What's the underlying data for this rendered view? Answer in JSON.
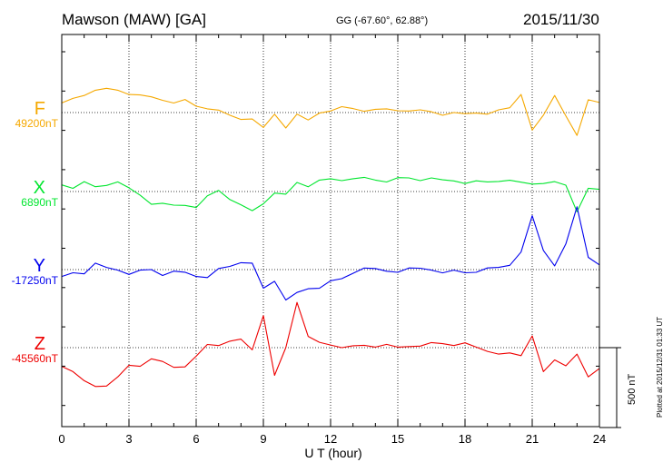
{
  "header": {
    "station": "Mawson (MAW)  [GA]",
    "coords": "GG (-67.60°,  62.88°)",
    "date": "2015/11/30"
  },
  "footer": {
    "plotted": "Plotted at 2015/12/31 01:33 UT",
    "scale_bar": "500 nT"
  },
  "chart_data": {
    "type": "line",
    "xlabel": "U T (hour)",
    "xlim": [
      0,
      24
    ],
    "xticks": [
      "0",
      "3",
      "6",
      "9",
      "12",
      "15",
      "18",
      "21",
      "24"
    ],
    "grid": true,
    "scale_bar_nT": 500,
    "series": [
      {
        "name": "F",
        "baseline": "49200nT",
        "color": "#f5a800",
        "x": [
          0,
          0.5,
          1,
          1.5,
          2,
          2.5,
          3,
          3.5,
          4,
          4.5,
          5,
          5.5,
          6,
          6.5,
          7,
          7.5,
          8,
          8.5,
          9,
          9.5,
          10,
          10.5,
          11,
          11.5,
          12,
          12.5,
          13,
          13.5,
          14,
          14.5,
          15,
          15.5,
          16,
          16.5,
          17,
          17.5,
          18,
          18.5,
          19,
          19.5,
          20,
          20.5,
          21,
          21.5,
          22,
          22.5,
          23,
          23.5,
          24
        ],
        "y": [
          50,
          85,
          110,
          150,
          145,
          140,
          120,
          100,
          95,
          80,
          70,
          75,
          40,
          30,
          5,
          -20,
          -40,
          -30,
          -100,
          -10,
          -90,
          -20,
          -50,
          0,
          20,
          30,
          25,
          15,
          10,
          20,
          15,
          20,
          10,
          5,
          -10,
          -10,
          -10,
          0,
          0,
          10,
          30,
          120,
          -120,
          -20,
          110,
          -10,
          -150,
          80,
          70
        ]
      },
      {
        "name": "X",
        "baseline": "6890nT",
        "color": "#00e62e",
        "x": [
          0,
          0.5,
          1,
          1.5,
          2,
          2.5,
          3,
          3.5,
          4,
          4.5,
          5,
          5.5,
          6,
          6.5,
          7,
          7.5,
          8,
          8.5,
          9,
          9.5,
          10,
          10.5,
          11,
          11.5,
          12,
          12.5,
          13,
          13.5,
          14,
          14.5,
          15,
          15.5,
          16,
          16.5,
          17,
          17.5,
          18,
          18.5,
          19,
          19.5,
          20,
          20.5,
          21,
          21.5,
          22,
          22.5,
          23,
          23.5,
          24
        ],
        "y": [
          45,
          30,
          55,
          30,
          45,
          50,
          20,
          -20,
          -70,
          -80,
          -85,
          -80,
          -110,
          -30,
          10,
          -40,
          -90,
          -120,
          -70,
          -20,
          -20,
          60,
          40,
          65,
          80,
          75,
          70,
          85,
          75,
          70,
          80,
          85,
          75,
          75,
          70,
          70,
          60,
          60,
          60,
          70,
          60,
          55,
          50,
          60,
          55,
          40,
          -120,
          10,
          10
        ]
      },
      {
        "name": "Y",
        "baseline": "-17250nT",
        "color": "#0000ee",
        "x": [
          0,
          0.5,
          1,
          1.5,
          2,
          2.5,
          3,
          3.5,
          4,
          4.5,
          5,
          5.5,
          6,
          6.5,
          7,
          7.5,
          8,
          8.5,
          9,
          9.5,
          10,
          10.5,
          11,
          11.5,
          12,
          12.5,
          13,
          13.5,
          14,
          14.5,
          15,
          15.5,
          16,
          16.5,
          17,
          17.5,
          18,
          18.5,
          19,
          19.5,
          20,
          20.5,
          21,
          21.5,
          22,
          22.5,
          23,
          23.5,
          24
        ],
        "y": [
          -50,
          -20,
          -20,
          30,
          10,
          0,
          -20,
          -10,
          0,
          -30,
          -20,
          -20,
          -40,
          -40,
          0,
          20,
          50,
          30,
          -120,
          -70,
          -180,
          -150,
          -120,
          -110,
          -80,
          -60,
          -20,
          20,
          0,
          -10,
          -10,
          0,
          5,
          0,
          -10,
          -10,
          -20,
          -10,
          0,
          10,
          30,
          120,
          330,
          120,
          30,
          150,
          390,
          80,
          40
        ]
      },
      {
        "name": "Z",
        "baseline": "-45560nT",
        "color": "#ee0000",
        "x": [
          0,
          0.5,
          1,
          1.5,
          2,
          2.5,
          3,
          3.5,
          4,
          4.5,
          5,
          5.5,
          6,
          6.5,
          7,
          7.5,
          8,
          8.5,
          9,
          9.5,
          10,
          10.5,
          11,
          11.5,
          12,
          12.5,
          13,
          13.5,
          14,
          14.5,
          15,
          15.5,
          16,
          16.5,
          17,
          17.5,
          18,
          18.5,
          19,
          19.5,
          20,
          20.5,
          21,
          21.5,
          22,
          22.5,
          23,
          23.5,
          24
        ],
        "y": [
          -110,
          -160,
          -210,
          -240,
          -230,
          -190,
          -110,
          -110,
          -80,
          -90,
          -120,
          -110,
          -60,
          20,
          20,
          30,
          50,
          -10,
          210,
          -180,
          0,
          290,
          60,
          30,
          20,
          10,
          5,
          15,
          10,
          10,
          0,
          10,
          20,
          25,
          25,
          20,
          20,
          0,
          -20,
          -30,
          -40,
          -50,
          80,
          -160,
          -80,
          -110,
          -30,
          -190,
          -130
        ]
      }
    ]
  }
}
